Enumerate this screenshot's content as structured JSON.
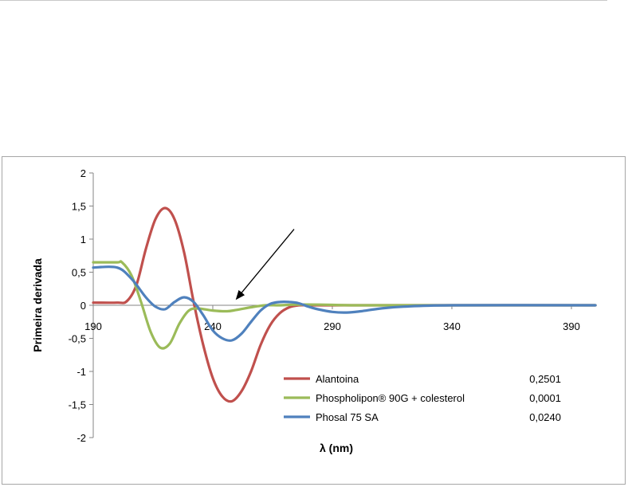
{
  "chart_data": {
    "type": "line",
    "title": "",
    "xlabel": "λ (nm)",
    "ylabel": "Primeira derivada",
    "xlim": [
      190,
      400
    ],
    "ylim": [
      -2,
      2
    ],
    "x_ticks": [
      190,
      240,
      290,
      340,
      390
    ],
    "y_ticks": [
      2,
      1.5,
      1,
      0.5,
      0,
      -0.5,
      -1,
      -1.5,
      -2
    ],
    "y_tick_labels": [
      "2",
      "1,5",
      "1",
      "0,5",
      "0",
      "-0,5",
      "-1",
      "-1,5",
      "-2"
    ],
    "grid": false,
    "legend_position": "bottom-right",
    "series": [
      {
        "name": "Alantoina",
        "legend_value": "0,2501",
        "color": "#c0504d",
        "x": [
          190,
          200,
          204,
          208,
          212,
          216,
          220,
          224,
          228,
          232,
          236,
          240,
          244,
          248,
          252,
          256,
          260,
          264,
          268,
          272,
          276,
          280,
          290,
          300,
          320,
          350,
          400
        ],
        "y": [
          0.04,
          0.04,
          0.06,
          0.3,
          0.85,
          1.3,
          1.47,
          1.3,
          0.8,
          0.05,
          -0.6,
          -1.1,
          -1.38,
          -1.45,
          -1.3,
          -1.0,
          -0.6,
          -0.3,
          -0.12,
          -0.03,
          0.0,
          0.0,
          0.0,
          0.0,
          0.0,
          0.0,
          0.0
        ]
      },
      {
        "name": "Phospholipon® 90G + colesterol",
        "legend_value": "0,0001",
        "color": "#9bbb59",
        "x": [
          190,
          200,
          202,
          206,
          210,
          214,
          218,
          222,
          226,
          230,
          234,
          240,
          246,
          250,
          256,
          262,
          268,
          275,
          285,
          300,
          330,
          400
        ],
        "y": [
          0.65,
          0.65,
          0.65,
          0.45,
          0.05,
          -0.4,
          -0.64,
          -0.58,
          -0.28,
          -0.08,
          -0.05,
          -0.08,
          -0.09,
          -0.07,
          -0.03,
          0.0,
          0.0,
          0.01,
          0.01,
          0.0,
          0.0,
          0.0
        ]
      },
      {
        "name": "Phosal 75 SA",
        "legend_value": "0,0240",
        "color": "#4f81bd",
        "x": [
          190,
          200,
          206,
          212,
          216,
          220,
          224,
          228,
          232,
          236,
          240,
          244,
          248,
          252,
          256,
          260,
          264,
          268,
          272,
          276,
          280,
          284,
          290,
          296,
          302,
          310,
          320,
          340,
          400
        ],
        "y": [
          0.57,
          0.57,
          0.4,
          0.12,
          -0.02,
          -0.06,
          0.05,
          0.12,
          0.05,
          -0.15,
          -0.38,
          -0.5,
          -0.53,
          -0.43,
          -0.25,
          -0.08,
          0.02,
          0.05,
          0.05,
          0.03,
          -0.02,
          -0.06,
          -0.1,
          -0.11,
          -0.09,
          -0.05,
          -0.02,
          0.0,
          0.0
        ]
      }
    ],
    "annotations": [
      {
        "type": "arrow",
        "from": [
          274,
          1.15
        ],
        "to": [
          250,
          0.1
        ]
      }
    ]
  }
}
